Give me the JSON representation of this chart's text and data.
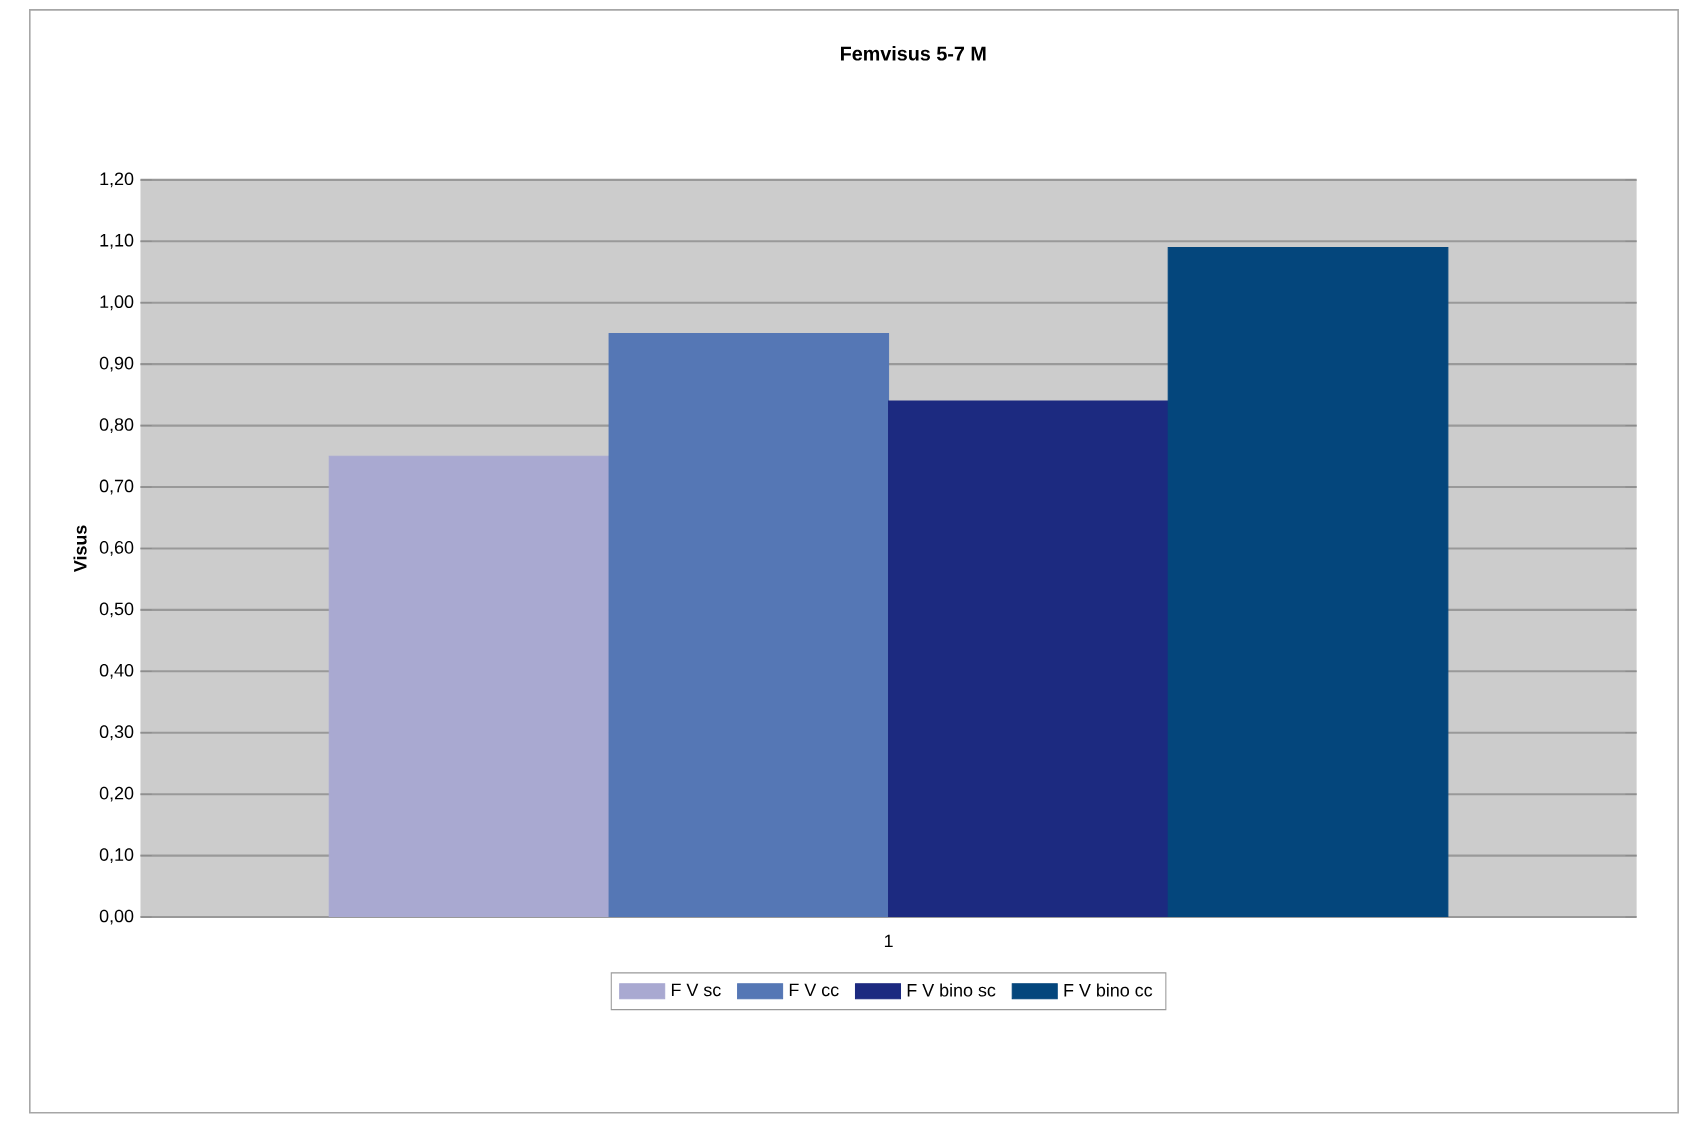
{
  "chart_data": {
    "type": "bar",
    "title": "Femvisus 5-7 M",
    "ylabel": "Visus",
    "categories": [
      "1"
    ],
    "series": [
      {
        "name": "F V sc",
        "color": "#a9a9d1",
        "values": [
          0.75
        ]
      },
      {
        "name": "F V cc",
        "color": "#5577b5",
        "values": [
          0.95
        ]
      },
      {
        "name": "F V bino sc",
        "color": "#1c2a80",
        "values": [
          0.84
        ]
      },
      {
        "name": "F V bino cc",
        "color": "#04467c",
        "values": [
          1.09
        ]
      }
    ],
    "ylim": [
      0,
      1.2
    ],
    "yticks": [
      {
        "value": 0,
        "label": "0,00"
      },
      {
        "value": 0.1,
        "label": "0,10"
      },
      {
        "value": 0.2,
        "label": "0,20"
      },
      {
        "value": 0.3,
        "label": "0,30"
      },
      {
        "value": 0.4,
        "label": "0,40"
      },
      {
        "value": 0.5,
        "label": "0,50"
      },
      {
        "value": 0.6,
        "label": "0,60"
      },
      {
        "value": 0.7,
        "label": "0,70"
      },
      {
        "value": 0.8,
        "label": "0,80"
      },
      {
        "value": 0.9,
        "label": "0,90"
      },
      {
        "value": 1.0,
        "label": "1,00"
      },
      {
        "value": 1.1,
        "label": "1,10"
      },
      {
        "value": 1.2,
        "label": "1,20"
      }
    ],
    "grid": "y",
    "legend": "bottom"
  }
}
